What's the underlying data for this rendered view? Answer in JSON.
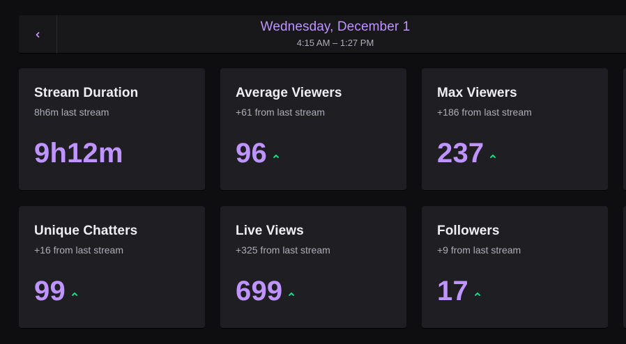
{
  "header": {
    "date": "Wednesday, December 1",
    "time_range": "4:15 AM – 1:27 PM"
  },
  "accent_color": "#bf94ff",
  "trend_color": "#00f593",
  "cards": [
    {
      "title": "Stream Duration",
      "subtitle": "8h6m last stream",
      "value": "9h12m",
      "trend": "none"
    },
    {
      "title": "Average Viewers",
      "subtitle": "+61 from last stream",
      "value": "96",
      "trend": "up"
    },
    {
      "title": "Max Viewers",
      "subtitle": "+186 from last stream",
      "value": "237",
      "trend": "up"
    },
    {
      "title": "Unique Chatters",
      "subtitle": "+16 from last stream",
      "value": "99",
      "trend": "up"
    },
    {
      "title": "Live Views",
      "subtitle": "+325 from last stream",
      "value": "699",
      "trend": "up"
    },
    {
      "title": "Followers",
      "subtitle": "+9 from last stream",
      "value": "17",
      "trend": "up"
    }
  ]
}
